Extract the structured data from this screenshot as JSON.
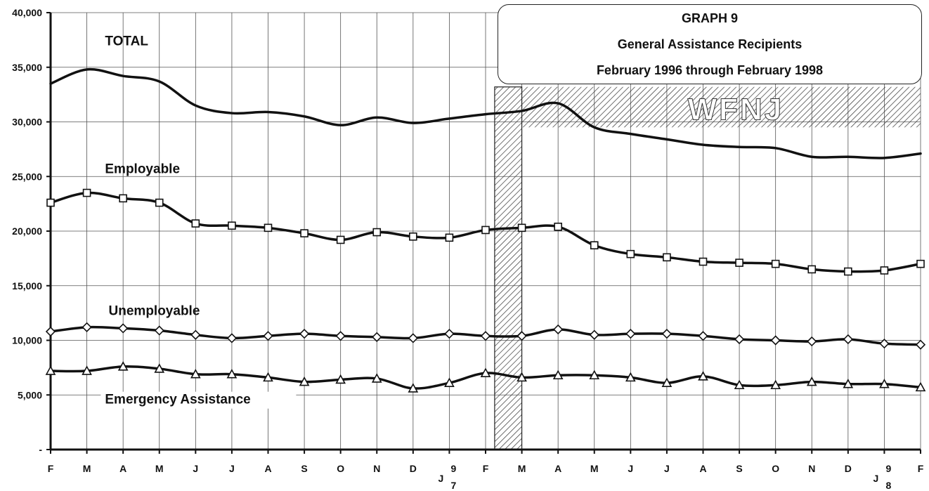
{
  "chart_data": {
    "type": "line",
    "title": "GRAPH 9",
    "subtitle": "General Assistance Recipients",
    "period": "February 1996 through February 1998",
    "shaded_label": "WFNJ",
    "xlabel": "",
    "ylabel": "",
    "ylim": [
      0,
      40000
    ],
    "yticks": [
      "-",
      "5,000",
      "10,000",
      "15,000",
      "20,000",
      "25,000",
      "30,000",
      "35,000",
      "40,000"
    ],
    "ytick_values": [
      0,
      5000,
      10000,
      15000,
      20000,
      25000,
      30000,
      35000,
      40000
    ],
    "categories": [
      "F",
      "M",
      "A",
      "M",
      "J",
      "J",
      "A",
      "S",
      "O",
      "N",
      "D",
      "J",
      "F",
      "M",
      "A",
      "M",
      "J",
      "J",
      "A",
      "S",
      "O",
      "N",
      "D",
      "J",
      "F"
    ],
    "year_marks": [
      {
        "index": 11,
        "digits": [
          "9",
          "7"
        ]
      },
      {
        "index": 23,
        "digits": [
          "9",
          "8"
        ]
      }
    ],
    "grid": true,
    "series": [
      {
        "name": "TOTAL",
        "marker": "none",
        "values": [
          33500,
          34800,
          34200,
          33700,
          31500,
          30800,
          30900,
          30500,
          29700,
          30400,
          29900,
          30300,
          30700,
          31000,
          31700,
          29500,
          28900,
          28400,
          27900,
          27700,
          27600,
          26800,
          26800,
          26700,
          27100
        ]
      },
      {
        "name": "Employable",
        "marker": "square",
        "values": [
          22600,
          23500,
          23000,
          22600,
          20700,
          20500,
          20300,
          19800,
          19200,
          19900,
          19500,
          19400,
          20100,
          20300,
          20400,
          18700,
          17900,
          17600,
          17200,
          17100,
          17000,
          16500,
          16300,
          16400,
          17000
        ]
      },
      {
        "name": "Unemployable",
        "marker": "diamond",
        "values": [
          10800,
          11200,
          11100,
          10900,
          10500,
          10200,
          10400,
          10600,
          10400,
          10300,
          10200,
          10600,
          10400,
          10400,
          11000,
          10500,
          10600,
          10600,
          10400,
          10100,
          10000,
          9900,
          10100,
          9700,
          9600
        ]
      },
      {
        "name": "Emergency Assistance",
        "marker": "triangle",
        "values": [
          7200,
          7200,
          7600,
          7400,
          6900,
          6900,
          6600,
          6200,
          6400,
          6500,
          5600,
          6100,
          7000,
          6600,
          6800,
          6800,
          6600,
          6100,
          6700,
          5900,
          5900,
          6200,
          6000,
          6000,
          5700
        ]
      }
    ]
  }
}
